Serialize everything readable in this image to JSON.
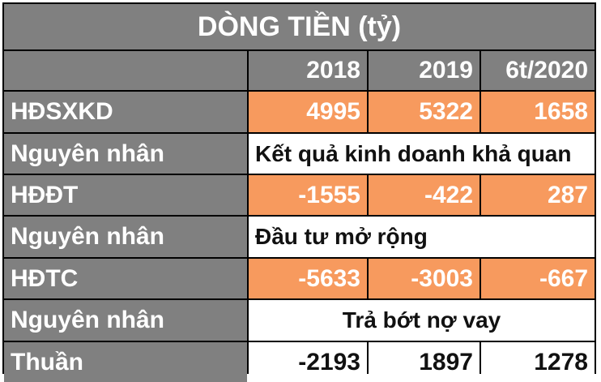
{
  "table": {
    "title": "DÒNG TIỀN (tỷ)",
    "years": [
      "2018",
      "2019",
      "6t/2020"
    ],
    "rows": [
      {
        "label": "HĐSXKD",
        "values": [
          "4995",
          "5322",
          "1658"
        ]
      },
      {
        "label": "Nguyên nhân",
        "note": "Kết quả kinh doanh khả quan"
      },
      {
        "label": "HĐĐT",
        "values": [
          "-1555",
          "-422",
          "287"
        ]
      },
      {
        "label": "Nguyên nhân",
        "note": "Đầu tư mở rộng"
      },
      {
        "label": "HĐTC",
        "values": [
          "-5633",
          "-3003",
          "-667"
        ]
      },
      {
        "label": "Nguyên nhân",
        "note": "Trả bớt nợ vay"
      },
      {
        "label": "Thuần",
        "values": [
          "-2193",
          "1897",
          "1278"
        ]
      }
    ]
  },
  "colors": {
    "header_gray": "#808080",
    "value_orange": "#f79a5e",
    "white": "#ffffff"
  }
}
